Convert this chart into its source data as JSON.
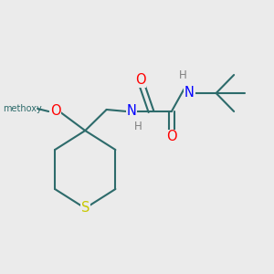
{
  "background_color": "#ebebeb",
  "bond_color": "#2d6b6b",
  "bond_lw": 1.5,
  "atom_colors": {
    "O": "#ff0000",
    "N": "#0000ff",
    "S": "#c8c800",
    "H": "#808080",
    "C": "#2d6b6b"
  },
  "font_size": 9.5,
  "xlim": [
    0,
    10
  ],
  "ylim": [
    0,
    10
  ]
}
